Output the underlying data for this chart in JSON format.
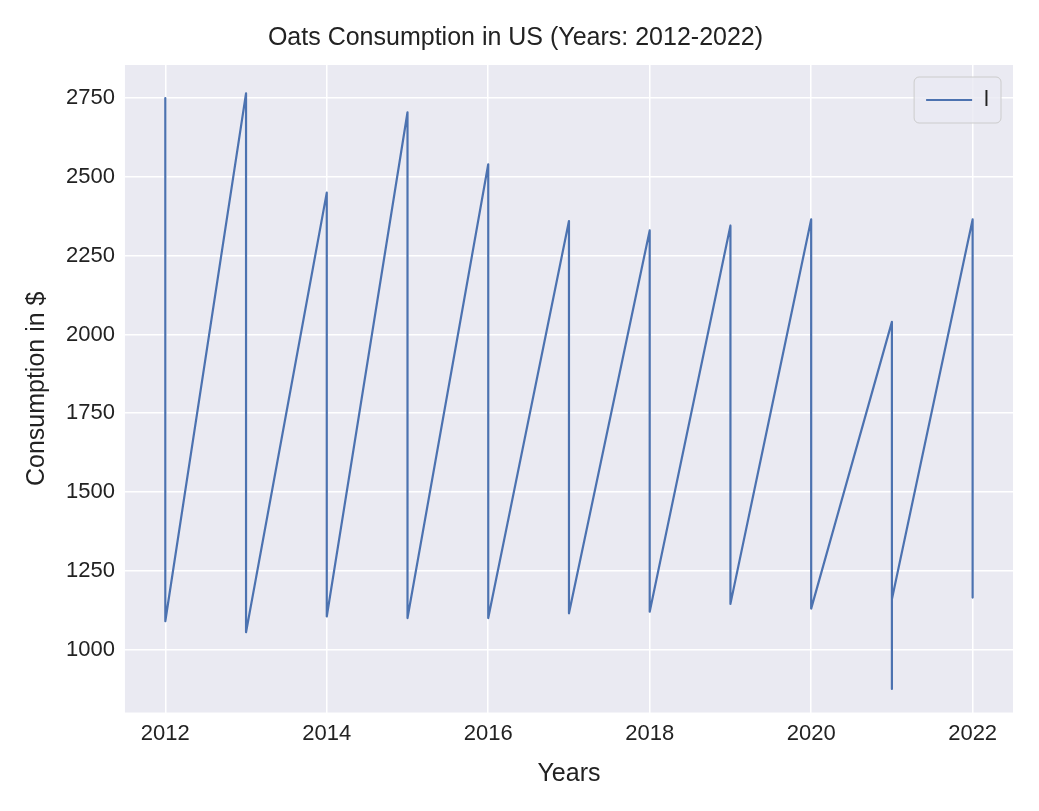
{
  "chart_data": {
    "type": "line",
    "title": "Oats Consumption in US (Years: 2012-2022)",
    "xlabel": "Years",
    "ylabel": "Consumption in $",
    "series": [
      {
        "name": "l",
        "color": "#4c72b0",
        "x": [
          2012,
          2012,
          2013,
          2013,
          2014,
          2014,
          2015,
          2015,
          2016,
          2016,
          2017,
          2017,
          2018,
          2018,
          2019,
          2019,
          2020,
          2020,
          2021,
          2021,
          2021,
          2022,
          2022
        ],
        "values": [
          2750,
          1090,
          2765,
          1055,
          2450,
          1105,
          2705,
          1100,
          2540,
          1100,
          2360,
          1115,
          2330,
          1120,
          2345,
          1145,
          2365,
          1130,
          2040,
          875,
          1160,
          2365,
          1165
        ]
      }
    ],
    "xlim": [
      2011.5,
      2022.5
    ],
    "xticks": [
      2012,
      2014,
      2016,
      2018,
      2020,
      2022
    ],
    "ylim": [
      800,
      2855
    ],
    "yticks": [
      1000,
      1250,
      1500,
      1750,
      2000,
      2250,
      2500,
      2750
    ],
    "grid": true,
    "legend": "top right",
    "marker": "none",
    "line_style": "solid"
  }
}
